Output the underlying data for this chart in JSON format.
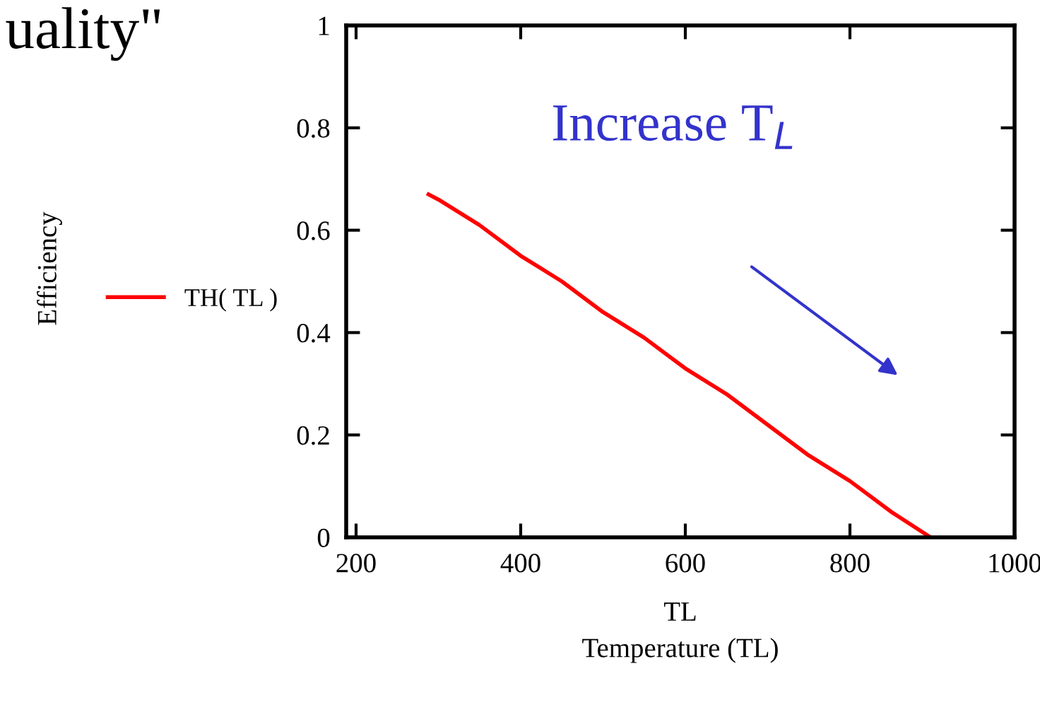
{
  "chart_data": {
    "type": "line",
    "xlabel": "TL\nTemperature (TL)",
    "x": [
      288,
      300,
      350,
      400,
      450,
      500,
      550,
      600,
      650,
      700,
      750,
      800,
      850,
      898
    ],
    "series": [
      {
        "name": "TH( TL )",
        "color": "#ff0000",
        "values": [
          0.67,
          0.66,
          0.61,
          0.55,
          0.5,
          0.44,
          0.39,
          0.33,
          0.28,
          0.22,
          0.16,
          0.11,
          0.05,
          0
        ]
      }
    ],
    "annotations": [
      "uality\"",
      "Increase T$_{L}$",
      "Efficiency"
    ],
    "xlim": [
      188,
      1000
    ],
    "xticks": [
      200,
      400,
      600,
      800,
      1000
    ],
    "ylim": [
      0,
      1
    ],
    "yticks": [
      0,
      0.2,
      0.4,
      0.6,
      0.8,
      1
    ],
    "grid": false,
    "legend": "left",
    "marker": "none",
    "line_style": "solid"
  }
}
